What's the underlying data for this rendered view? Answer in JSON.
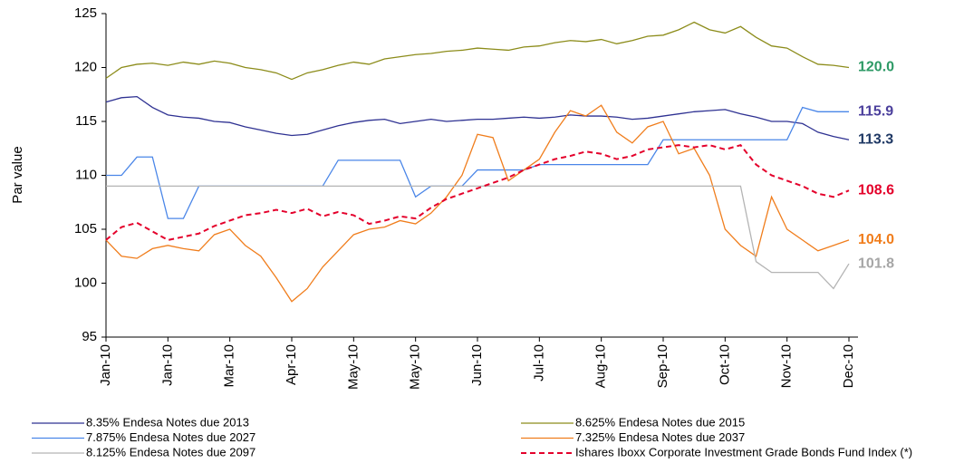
{
  "chart_data": {
    "type": "line",
    "y_label": "Par value",
    "categories": [
      "Jan-10",
      null,
      null,
      null,
      "Jan-10",
      null,
      null,
      null,
      "Mar-10",
      null,
      null,
      null,
      "Apr-10",
      null,
      null,
      null,
      "May-10",
      null,
      null,
      null,
      "May-10",
      null,
      null,
      null,
      "Jun-10",
      null,
      null,
      null,
      "Jul-10",
      null,
      null,
      null,
      "Aug-10",
      null,
      null,
      null,
      "Sep-10",
      null,
      null,
      null,
      "Oct-10",
      null,
      null,
      null,
      "Nov-10",
      null,
      null,
      null,
      "Dec-10"
    ],
    "ylim": [
      95,
      125
    ],
    "yticks": [
      95,
      100,
      105,
      110,
      115,
      120,
      125
    ],
    "series": [
      {
        "name": "8.35% Endesa Notes due 2013",
        "color": "#2e3192",
        "dash": false,
        "last_label": "113.3",
        "label_color": "#1f3864",
        "values": [
          116.8,
          117.2,
          117.3,
          116.3,
          115.6,
          115.4,
          115.3,
          115.0,
          114.9,
          114.5,
          114.2,
          113.9,
          113.7,
          113.8,
          114.2,
          114.6,
          114.9,
          115.1,
          115.2,
          114.8,
          115.0,
          115.2,
          115.0,
          115.1,
          115.2,
          115.2,
          115.3,
          115.4,
          115.3,
          115.4,
          115.6,
          115.5,
          115.5,
          115.4,
          115.2,
          115.3,
          115.5,
          115.7,
          115.9,
          116.0,
          116.1,
          115.7,
          115.4,
          115.0,
          115.0,
          114.8,
          114.0,
          113.6,
          113.3
        ]
      },
      {
        "name": "8.625% Endesa Notes due 2015",
        "color": "#8c8c1a",
        "dash": false,
        "last_label": "120.0",
        "label_color": "#2e9a66",
        "values": [
          119.0,
          120.0,
          120.3,
          120.4,
          120.2,
          120.5,
          120.3,
          120.6,
          120.4,
          120.0,
          119.8,
          119.5,
          118.9,
          119.5,
          119.8,
          120.2,
          120.5,
          120.3,
          120.8,
          121.0,
          121.2,
          121.3,
          121.5,
          121.6,
          121.8,
          121.7,
          121.6,
          121.9,
          122.0,
          122.3,
          122.5,
          122.4,
          122.6,
          122.2,
          122.5,
          122.9,
          123.0,
          123.5,
          124.2,
          123.5,
          123.2,
          123.8,
          122.8,
          122.0,
          121.8,
          121.0,
          120.3,
          120.2,
          120.0
        ]
      },
      {
        "name": "7.875% Endesa Notes due 2027",
        "color": "#4a86e8",
        "dash": false,
        "last_label": "115.9",
        "label_color": "#4b3f9c",
        "values": [
          110,
          110,
          111.7,
          111.7,
          106,
          106,
          109,
          109,
          109,
          109,
          109,
          109,
          109,
          109,
          109,
          111.4,
          111.4,
          111.4,
          111.4,
          111.4,
          108,
          109,
          109,
          109,
          110.5,
          110.5,
          110.5,
          110.5,
          111,
          111,
          111,
          111,
          111,
          111,
          111,
          111,
          113.3,
          113.3,
          113.3,
          113.3,
          113.3,
          113.3,
          113.3,
          113.3,
          113.3,
          116.3,
          115.9,
          115.9,
          115.9
        ]
      },
      {
        "name": "7.325% Endesa Notes due 2037",
        "color": "#f07d1c",
        "dash": false,
        "last_label": "104.0",
        "label_color": "#f07d1c",
        "values": [
          104.0,
          102.5,
          102.3,
          103.2,
          103.5,
          103.2,
          103.0,
          104.5,
          105.0,
          103.5,
          102.5,
          100.5,
          98.3,
          99.5,
          101.5,
          103.0,
          104.5,
          105.0,
          105.2,
          105.8,
          105.5,
          106.5,
          108.0,
          110.0,
          113.8,
          113.5,
          109.5,
          110.5,
          111.5,
          114.0,
          116.0,
          115.5,
          116.5,
          114.0,
          113.0,
          114.5,
          115.0,
          112.0,
          112.5,
          110.0,
          105.0,
          103.5,
          102.5,
          108.0,
          105.0,
          104.0,
          103.0,
          103.5,
          104.0
        ]
      },
      {
        "name": "8.125% Endesa Notes due 2097",
        "color": "#b4b4b4",
        "dash": false,
        "last_label": "101.8",
        "label_color": "#a6a6a6",
        "values": [
          109,
          109,
          109,
          109,
          109,
          109,
          109,
          109,
          109,
          109,
          109,
          109,
          109,
          109,
          109,
          109,
          109,
          109,
          109,
          109,
          109,
          109,
          109,
          109,
          109,
          109,
          109,
          109,
          109,
          109,
          109,
          109,
          109,
          109,
          109,
          109,
          109,
          109,
          109,
          109,
          109,
          109,
          102,
          101,
          101,
          101,
          101,
          99.5,
          101.8
        ]
      },
      {
        "name": "Ishares Iboxx Corporate Investment Grade Bonds Fund Index (*)",
        "color": "#e4002b",
        "dash": true,
        "last_label": "108.6",
        "label_color": "#e4002b",
        "values": [
          104.0,
          105.2,
          105.6,
          104.8,
          104.0,
          104.3,
          104.6,
          105.3,
          105.8,
          106.3,
          106.5,
          106.8,
          106.5,
          106.9,
          106.2,
          106.6,
          106.3,
          105.5,
          105.8,
          106.2,
          106.0,
          107.0,
          107.8,
          108.3,
          108.8,
          109.3,
          109.8,
          110.5,
          111.0,
          111.5,
          111.8,
          112.2,
          112.0,
          111.5,
          111.8,
          112.4,
          112.6,
          112.8,
          112.6,
          112.8,
          112.4,
          112.8,
          111.0,
          110.0,
          109.5,
          109.0,
          108.3,
          108.0,
          108.6
        ]
      }
    ]
  }
}
